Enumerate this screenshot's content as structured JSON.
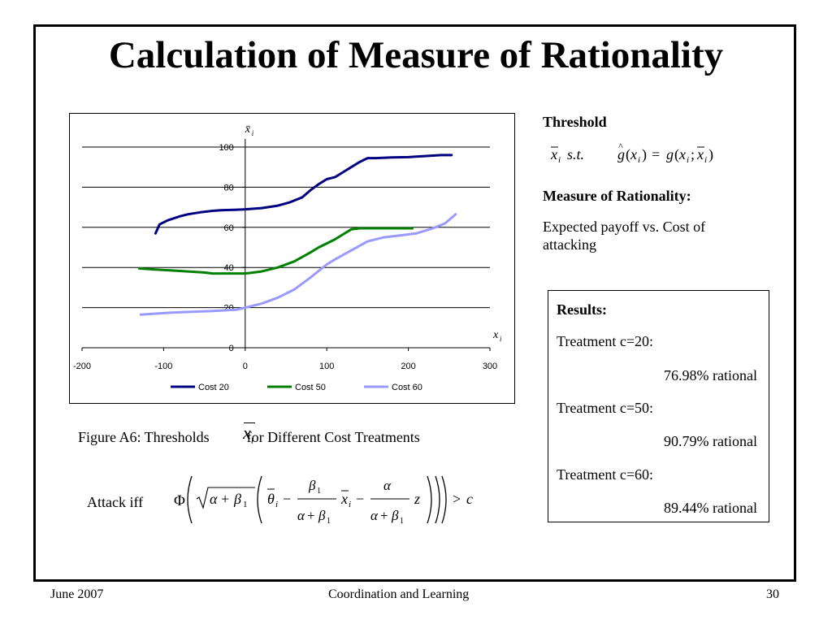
{
  "title": "Calculation of Measure of Rationality",
  "chart_data": {
    "type": "line",
    "x_axis_label": "x_i",
    "y_axis_label": "x̄_i",
    "xlim": [
      -200,
      300
    ],
    "ylim": [
      0,
      100
    ],
    "x_ticks": [
      "-200",
      "-100",
      "0",
      "100",
      "200",
      "300"
    ],
    "y_ticks": [
      "0",
      "20",
      "40",
      "60",
      "80",
      "100"
    ],
    "grid": "horizontal",
    "legend_position": "bottom",
    "series": [
      {
        "name": "Cost 20",
        "color": "#000080",
        "x": [
          -110,
          -105,
          -95,
          -80,
          -70,
          -55,
          -40,
          -30,
          -10,
          0,
          20,
          40,
          55,
          70,
          80,
          90,
          100,
          110,
          120,
          130,
          140,
          150,
          160,
          180,
          200,
          220,
          240,
          253
        ],
        "y": [
          57,
          61.5,
          63.5,
          65.5,
          66.5,
          67.5,
          68.2,
          68.5,
          68.8,
          69,
          69.6,
          70.8,
          72.5,
          75,
          78.5,
          81.5,
          84,
          85,
          87.5,
          90,
          92.5,
          94.5,
          94.5,
          94.8,
          95,
          95.5,
          96,
          96
        ]
      },
      {
        "name": "Cost 50",
        "color": "#008000",
        "x": [
          -130,
          -110,
          -90,
          -70,
          -50,
          -40,
          -20,
          0,
          20,
          40,
          60,
          80,
          90,
          100,
          110,
          120,
          130,
          140,
          160,
          180,
          205
        ],
        "y": [
          39.5,
          39,
          38.5,
          38,
          37.5,
          37,
          37,
          37,
          38,
          40,
          43,
          47.5,
          50,
          52,
          54,
          56.5,
          59,
          59.5,
          59.5,
          59.5,
          59.5
        ]
      },
      {
        "name": "Cost 60",
        "color": "#9999ff",
        "x": [
          -128,
          -110,
          -90,
          -60,
          -40,
          -10,
          0,
          20,
          40,
          60,
          80,
          100,
          110,
          130,
          150,
          170,
          190,
          210,
          230,
          245,
          258
        ],
        "y": [
          16.5,
          17,
          17.5,
          18,
          18.3,
          19,
          20,
          22,
          25,
          29,
          35,
          41.5,
          44,
          48.5,
          53,
          55,
          56,
          57,
          59.5,
          62,
          66.5
        ]
      }
    ]
  },
  "figure_caption": {
    "before": "Figure A6: Thresholds",
    "symbol": "x",
    "sub": "i",
    "after": "for Different Cost Treatments"
  },
  "attack_label": "Attack iff",
  "threshold": {
    "label": "Threshold"
  },
  "measure": {
    "label": "Measure of Rationality:",
    "text": "Expected payoff vs. Cost of attacking"
  },
  "results": {
    "heading": "Results:",
    "items": [
      {
        "treatment": "Treatment c=20:",
        "value": "76.98% rational"
      },
      {
        "treatment": "Treatment c=50:",
        "value": "90.79% rational"
      },
      {
        "treatment": "Treatment c=60:",
        "value": "89.44% rational"
      }
    ]
  },
  "footer": {
    "date": "June 2007",
    "center": "Coordination and Learning",
    "page": "30"
  }
}
